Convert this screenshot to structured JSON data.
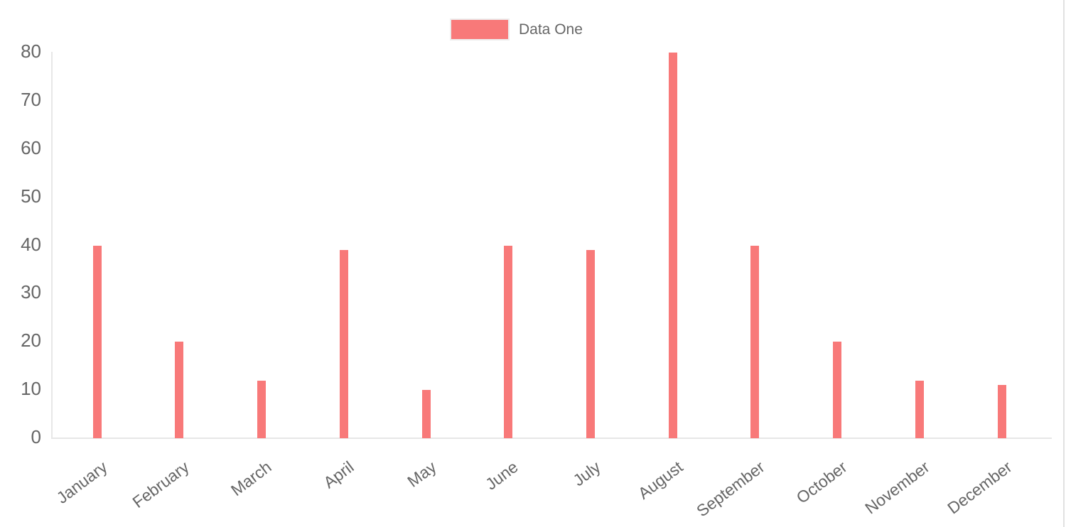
{
  "legend": {
    "position": "top",
    "items": [
      {
        "label": "Data One",
        "color": "#f87979"
      }
    ]
  },
  "chart_data": {
    "type": "bar",
    "title": "",
    "xlabel": "",
    "ylabel": "",
    "categories": [
      "January",
      "February",
      "March",
      "April",
      "May",
      "June",
      "July",
      "August",
      "September",
      "October",
      "November",
      "December"
    ],
    "series": [
      {
        "name": "Data One",
        "color": "#f87979",
        "values": [
          40,
          20,
          12,
          39,
          10,
          40,
          39,
          80,
          40,
          20,
          12,
          11
        ]
      }
    ],
    "ylim": [
      0,
      80
    ],
    "yticks": [
      0,
      10,
      20,
      30,
      40,
      50,
      60,
      70,
      80
    ],
    "grid": false,
    "legend_position": "top-center",
    "x_label_rotation_deg": -37
  }
}
